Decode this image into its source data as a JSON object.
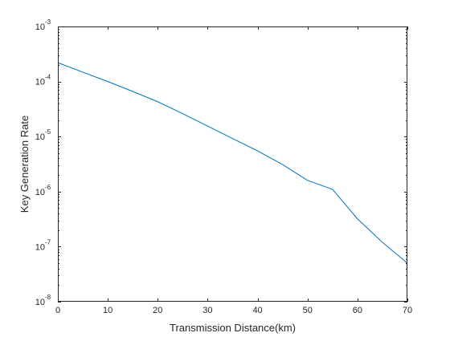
{
  "chart_data": {
    "type": "line",
    "title": "",
    "xlabel": "Transmission Distance(km)",
    "ylabel": "Key Generation Rate",
    "xlim": [
      0,
      70
    ],
    "ylim": [
      1e-08,
      0.001
    ],
    "yscale": "log",
    "grid": false,
    "box": true,
    "x_ticks": [
      0,
      10,
      20,
      30,
      40,
      50,
      60,
      70
    ],
    "x_tick_labels": [
      "0",
      "10",
      "20",
      "30",
      "40",
      "50",
      "60",
      "70"
    ],
    "y_ticks": [
      1e-08,
      1e-07,
      1e-06,
      1e-05,
      0.0001,
      0.001
    ],
    "y_tick_labels": [
      {
        "base": "10",
        "exponent": "-8"
      },
      {
        "base": "10",
        "exponent": "-7"
      },
      {
        "base": "10",
        "exponent": "-6"
      },
      {
        "base": "10",
        "exponent": "-5"
      },
      {
        "base": "10",
        "exponent": "-4"
      },
      {
        "base": "10",
        "exponent": "-3"
      }
    ],
    "series": [
      {
        "color": "#0072BD",
        "x": [
          0,
          5,
          10,
          15,
          20,
          25,
          30,
          35,
          40,
          45,
          50,
          55,
          60,
          65,
          70
        ],
        "y": [
          0.00022,
          0.000148,
          0.0001,
          6.6e-05,
          4.3e-05,
          2.6e-05,
          1.55e-05,
          9.2e-06,
          5.5e-06,
          3.1e-06,
          1.6e-06,
          1.1e-06,
          3.2e-07,
          1.2e-07,
          5e-08
        ]
      }
    ]
  }
}
